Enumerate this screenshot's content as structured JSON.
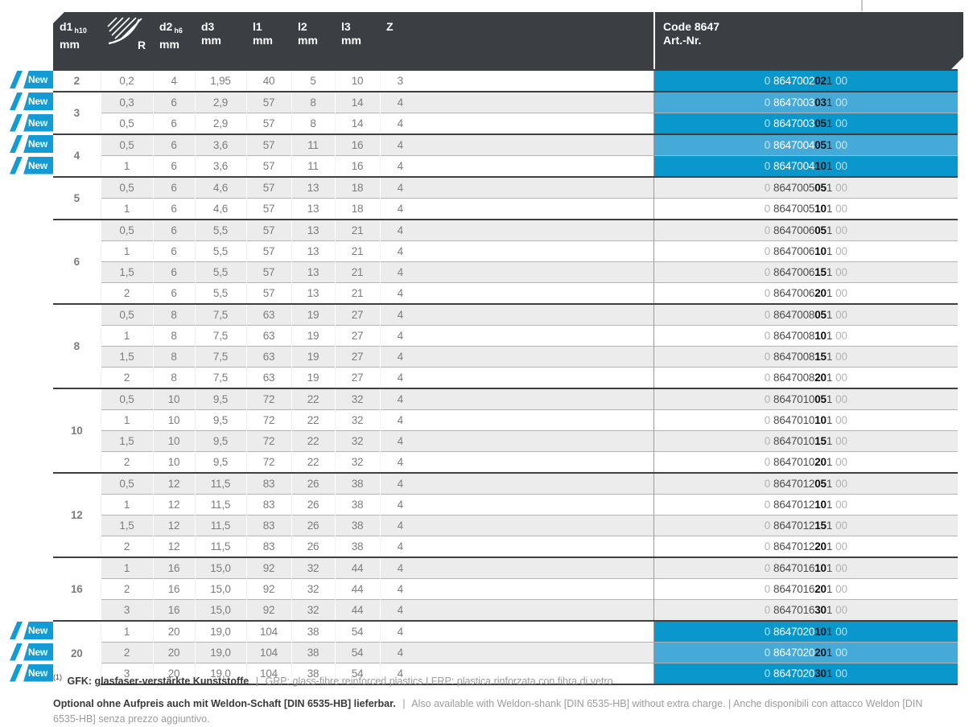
{
  "header": {
    "columns": [
      {
        "id": "d1",
        "main": "d1",
        "sub": "h10",
        "unit": "mm"
      },
      {
        "id": "r",
        "icon": "corner-radius",
        "label": "R"
      },
      {
        "id": "d2",
        "main": "d2",
        "sub": "h6",
        "unit": "mm"
      },
      {
        "id": "d3",
        "main": "d3",
        "unit": "mm"
      },
      {
        "id": "l1",
        "main": "l1",
        "unit": "mm"
      },
      {
        "id": "l2",
        "main": "l2",
        "unit": "mm"
      },
      {
        "id": "l3",
        "main": "l3",
        "unit": "mm"
      },
      {
        "id": "z",
        "main": "Z"
      },
      {
        "id": "code",
        "line1": "Code 8647",
        "line2": "Art.-Nr."
      }
    ]
  },
  "badge_label": "New",
  "code_format": {
    "prefix": "0",
    "tail": "1",
    "suffix": "00"
  },
  "groups": [
    {
      "d1": "2",
      "rows": [
        {
          "r": "0,2",
          "d2": "4",
          "d3": "1,95",
          "l1": "40",
          "l2": "5",
          "l3": "10",
          "z": "3",
          "code_main": "8647002",
          "code_bold": "02",
          "new": true
        }
      ]
    },
    {
      "d1": "3",
      "rows": [
        {
          "r": "0,3",
          "d2": "6",
          "d3": "2,9",
          "l1": "57",
          "l2": "8",
          "l3": "14",
          "z": "4",
          "code_main": "8647003",
          "code_bold": "03",
          "new": true
        },
        {
          "r": "0,5",
          "d2": "6",
          "d3": "2,9",
          "l1": "57",
          "l2": "8",
          "l3": "14",
          "z": "4",
          "code_main": "8647003",
          "code_bold": "05",
          "new": true
        }
      ]
    },
    {
      "d1": "4",
      "rows": [
        {
          "r": "0,5",
          "d2": "6",
          "d3": "3,6",
          "l1": "57",
          "l2": "11",
          "l3": "16",
          "z": "4",
          "code_main": "8647004",
          "code_bold": "05",
          "new": true
        },
        {
          "r": "1",
          "d2": "6",
          "d3": "3,6",
          "l1": "57",
          "l2": "11",
          "l3": "16",
          "z": "4",
          "code_main": "8647004",
          "code_bold": "10",
          "new": true
        }
      ]
    },
    {
      "d1": "5",
      "rows": [
        {
          "r": "0,5",
          "d2": "6",
          "d3": "4,6",
          "l1": "57",
          "l2": "13",
          "l3": "18",
          "z": "4",
          "code_main": "8647005",
          "code_bold": "05",
          "new": false
        },
        {
          "r": "1",
          "d2": "6",
          "d3": "4,6",
          "l1": "57",
          "l2": "13",
          "l3": "18",
          "z": "4",
          "code_main": "8647005",
          "code_bold": "10",
          "new": false
        }
      ]
    },
    {
      "d1": "6",
      "rows": [
        {
          "r": "0,5",
          "d2": "6",
          "d3": "5,5",
          "l1": "57",
          "l2": "13",
          "l3": "21",
          "z": "4",
          "code_main": "8647006",
          "code_bold": "05",
          "new": false
        },
        {
          "r": "1",
          "d2": "6",
          "d3": "5,5",
          "l1": "57",
          "l2": "13",
          "l3": "21",
          "z": "4",
          "code_main": "8647006",
          "code_bold": "10",
          "new": false
        },
        {
          "r": "1,5",
          "d2": "6",
          "d3": "5,5",
          "l1": "57",
          "l2": "13",
          "l3": "21",
          "z": "4",
          "code_main": "8647006",
          "code_bold": "15",
          "new": false
        },
        {
          "r": "2",
          "d2": "6",
          "d3": "5,5",
          "l1": "57",
          "l2": "13",
          "l3": "21",
          "z": "4",
          "code_main": "8647006",
          "code_bold": "20",
          "new": false
        }
      ]
    },
    {
      "d1": "8",
      "rows": [
        {
          "r": "0,5",
          "d2": "8",
          "d3": "7,5",
          "l1": "63",
          "l2": "19",
          "l3": "27",
          "z": "4",
          "code_main": "8647008",
          "code_bold": "05",
          "new": false
        },
        {
          "r": "1",
          "d2": "8",
          "d3": "7,5",
          "l1": "63",
          "l2": "19",
          "l3": "27",
          "z": "4",
          "code_main": "8647008",
          "code_bold": "10",
          "new": false
        },
        {
          "r": "1,5",
          "d2": "8",
          "d3": "7,5",
          "l1": "63",
          "l2": "19",
          "l3": "27",
          "z": "4",
          "code_main": "8647008",
          "code_bold": "15",
          "new": false
        },
        {
          "r": "2",
          "d2": "8",
          "d3": "7,5",
          "l1": "63",
          "l2": "19",
          "l3": "27",
          "z": "4",
          "code_main": "8647008",
          "code_bold": "20",
          "new": false
        }
      ]
    },
    {
      "d1": "10",
      "rows": [
        {
          "r": "0,5",
          "d2": "10",
          "d3": "9,5",
          "l1": "72",
          "l2": "22",
          "l3": "32",
          "z": "4",
          "code_main": "8647010",
          "code_bold": "05",
          "new": false
        },
        {
          "r": "1",
          "d2": "10",
          "d3": "9,5",
          "l1": "72",
          "l2": "22",
          "l3": "32",
          "z": "4",
          "code_main": "8647010",
          "code_bold": "10",
          "new": false
        },
        {
          "r": "1,5",
          "d2": "10",
          "d3": "9,5",
          "l1": "72",
          "l2": "22",
          "l3": "32",
          "z": "4",
          "code_main": "8647010",
          "code_bold": "15",
          "new": false
        },
        {
          "r": "2",
          "d2": "10",
          "d3": "9,5",
          "l1": "72",
          "l2": "22",
          "l3": "32",
          "z": "4",
          "code_main": "8647010",
          "code_bold": "20",
          "new": false
        }
      ]
    },
    {
      "d1": "12",
      "rows": [
        {
          "r": "0,5",
          "d2": "12",
          "d3": "11,5",
          "l1": "83",
          "l2": "26",
          "l3": "38",
          "z": "4",
          "code_main": "8647012",
          "code_bold": "05",
          "new": false
        },
        {
          "r": "1",
          "d2": "12",
          "d3": "11,5",
          "l1": "83",
          "l2": "26",
          "l3": "38",
          "z": "4",
          "code_main": "8647012",
          "code_bold": "10",
          "new": false
        },
        {
          "r": "1,5",
          "d2": "12",
          "d3": "11,5",
          "l1": "83",
          "l2": "26",
          "l3": "38",
          "z": "4",
          "code_main": "8647012",
          "code_bold": "15",
          "new": false
        },
        {
          "r": "2",
          "d2": "12",
          "d3": "11,5",
          "l1": "83",
          "l2": "26",
          "l3": "38",
          "z": "4",
          "code_main": "8647012",
          "code_bold": "20",
          "new": false
        }
      ]
    },
    {
      "d1": "16",
      "rows": [
        {
          "r": "1",
          "d2": "16",
          "d3": "15,0",
          "l1": "92",
          "l2": "32",
          "l3": "44",
          "z": "4",
          "code_main": "8647016",
          "code_bold": "10",
          "new": false
        },
        {
          "r": "2",
          "d2": "16",
          "d3": "15,0",
          "l1": "92",
          "l2": "32",
          "l3": "44",
          "z": "4",
          "code_main": "8647016",
          "code_bold": "20",
          "new": false
        },
        {
          "r": "3",
          "d2": "16",
          "d3": "15,0",
          "l1": "92",
          "l2": "32",
          "l3": "44",
          "z": "4",
          "code_main": "8647016",
          "code_bold": "30",
          "new": false
        }
      ]
    },
    {
      "d1": "20",
      "rows": [
        {
          "r": "1",
          "d2": "20",
          "d3": "19,0",
          "l1": "104",
          "l2": "38",
          "l3": "54",
          "z": "4",
          "code_main": "8647020",
          "code_bold": "10",
          "new": true
        },
        {
          "r": "2",
          "d2": "20",
          "d3": "19,0",
          "l1": "104",
          "l2": "38",
          "l3": "54",
          "z": "4",
          "code_main": "8647020",
          "code_bold": "20",
          "new": true
        },
        {
          "r": "3",
          "d2": "20",
          "d3": "19,0",
          "l1": "104",
          "l2": "38",
          "l3": "54",
          "z": "4",
          "code_main": "8647020",
          "code_bold": "30",
          "new": true
        }
      ]
    }
  ],
  "footnotes": {
    "gfk": {
      "marker": "(1)",
      "bold": "GFK: glasfaser-verstärkte Kunststoffe",
      "separator": "|",
      "rest": "GRP: glass-fibre reinforced plastics I FRP: plastica rinforzata con fibra di vetro"
    },
    "weldon": {
      "bold": "Optional ohne Aufpreis auch mit Weldon-Schaft [DIN 6535-HB] lieferbar.",
      "separator": "|",
      "rest": "Also available with Weldon-shank [DIN 6535-HB] without extra charge. | Anche disponibili con attacco Weldon [DIN 6535-HB] senza prezzo aggiuntivo."
    }
  },
  "colors": {
    "header_bg": "#3b3e43",
    "stripe_gray": "#ececec",
    "code_highlight_dark": "#0a97cc",
    "code_highlight_light": "#45aad8",
    "badge_blue": "#129bd5"
  }
}
